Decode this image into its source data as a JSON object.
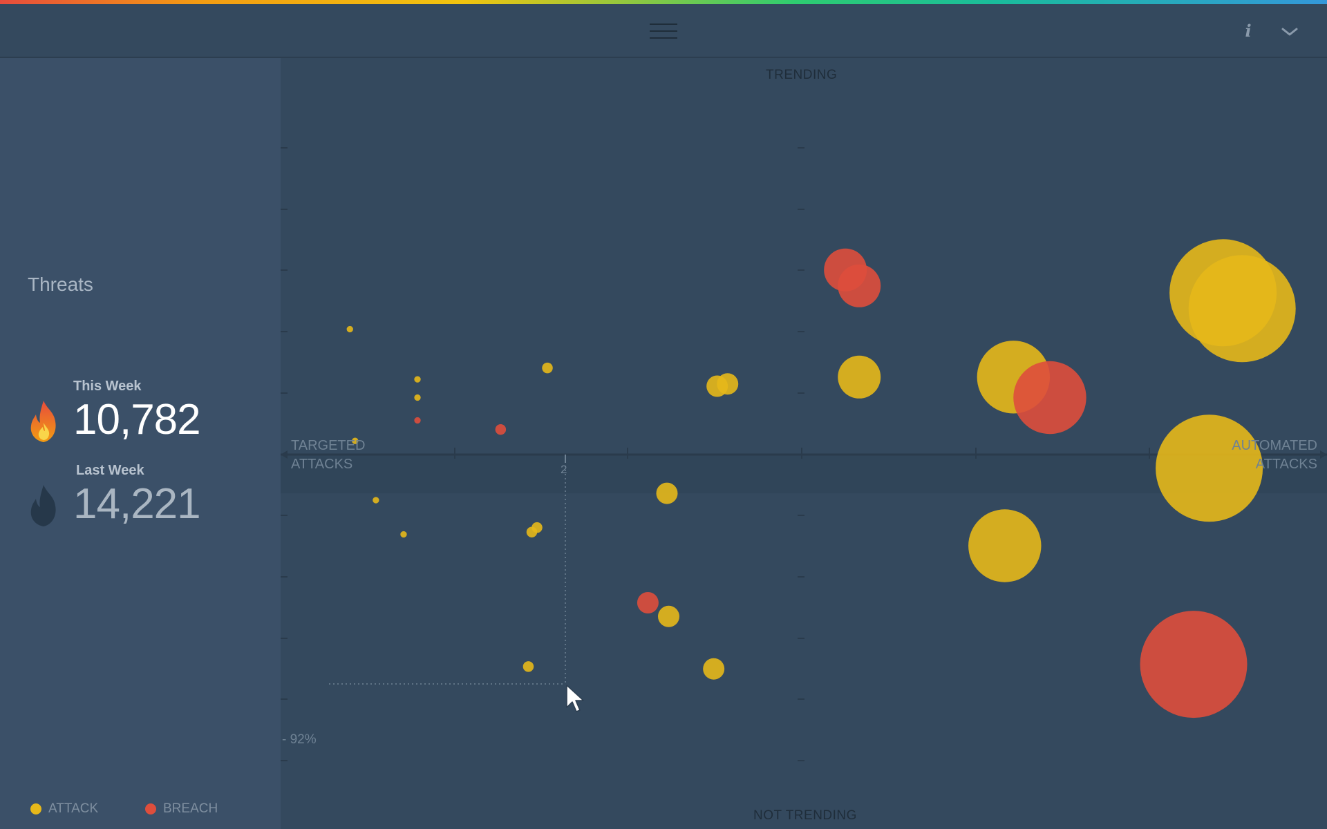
{
  "header": {
    "menu_icon": "hamburger-icon",
    "info_icon": "info-icon",
    "info_glyph": "i",
    "dropdown_icon": "chevron-down-icon"
  },
  "sidebar": {
    "title": "Threats",
    "this_week": {
      "label": "This Week",
      "value": "10,782",
      "icon": "flame-icon-active"
    },
    "last_week": {
      "label": "Last Week",
      "value": "14,221",
      "icon": "flame-icon-inactive"
    }
  },
  "legend": [
    {
      "label": "ATTACK",
      "color": "#e6b81a"
    },
    {
      "label": "BREACH",
      "color": "#de4e3c"
    }
  ],
  "colors": {
    "attack": "#e6b81a",
    "breach": "#de4e3c",
    "background": "#34495e",
    "sidebar": "#3b5068"
  },
  "chart_data": {
    "type": "scatter",
    "top_label": "TRENDING",
    "bottom_label": "NOT TRENDING",
    "left_label_line1": "TARGETED",
    "left_label_line2": "ATTACKS",
    "right_label_line1": "AUTOMATED",
    "right_label_line2": "ATTACKS",
    "hover": {
      "x_tick": "2",
      "y_label": "- 92%"
    },
    "x_range": [
      0,
      6
    ],
    "points": [
      {
        "x": 0.4,
        "y": 0.55,
        "r": 3,
        "type": "attack"
      },
      {
        "x": 0.43,
        "y": 0.06,
        "r": 3,
        "type": "attack"
      },
      {
        "x": 0.55,
        "y": -0.2,
        "r": 3,
        "type": "attack"
      },
      {
        "x": 0.71,
        "y": -0.35,
        "r": 3,
        "type": "attack"
      },
      {
        "x": 0.79,
        "y": 0.33,
        "r": 3,
        "type": "attack"
      },
      {
        "x": 0.79,
        "y": 0.25,
        "r": 3,
        "type": "attack"
      },
      {
        "x": 0.79,
        "y": 0.15,
        "r": 3,
        "type": "breach"
      },
      {
        "x": 1.27,
        "y": 0.11,
        "r": 5,
        "type": "breach"
      },
      {
        "x": 1.54,
        "y": 0.38,
        "r": 5,
        "type": "attack"
      },
      {
        "x": 1.45,
        "y": -0.34,
        "r": 5,
        "type": "attack"
      },
      {
        "x": 1.48,
        "y": -0.32,
        "r": 5,
        "type": "attack"
      },
      {
        "x": 1.43,
        "y": -0.93,
        "r": 5,
        "type": "attack"
      },
      {
        "x": 2.23,
        "y": -0.17,
        "r": 10,
        "type": "attack"
      },
      {
        "x": 2.12,
        "y": -0.65,
        "r": 10,
        "type": "breach"
      },
      {
        "x": 2.24,
        "y": -0.71,
        "r": 10,
        "type": "attack"
      },
      {
        "x": 2.5,
        "y": -0.94,
        "r": 10,
        "type": "attack"
      },
      {
        "x": 2.52,
        "y": 0.3,
        "r": 10,
        "type": "attack"
      },
      {
        "x": 2.58,
        "y": 0.31,
        "r": 10,
        "type": "attack"
      },
      {
        "x": 3.26,
        "y": 0.81,
        "r": 20,
        "type": "breach"
      },
      {
        "x": 3.34,
        "y": 0.74,
        "r": 20,
        "type": "breach"
      },
      {
        "x": 3.34,
        "y": 0.34,
        "r": 20,
        "type": "attack"
      },
      {
        "x": 4.23,
        "y": 0.34,
        "r": 34,
        "type": "attack"
      },
      {
        "x": 4.44,
        "y": 0.25,
        "r": 34,
        "type": "breach"
      },
      {
        "x": 4.18,
        "y": -0.4,
        "r": 34,
        "type": "attack"
      },
      {
        "x": 5.36,
        "y": -0.06,
        "r": 50,
        "type": "attack"
      },
      {
        "x": 5.44,
        "y": 0.71,
        "r": 50,
        "type": "attack"
      },
      {
        "x": 5.55,
        "y": 0.64,
        "r": 50,
        "type": "attack"
      },
      {
        "x": 5.27,
        "y": -0.92,
        "r": 50,
        "type": "breach"
      }
    ]
  }
}
